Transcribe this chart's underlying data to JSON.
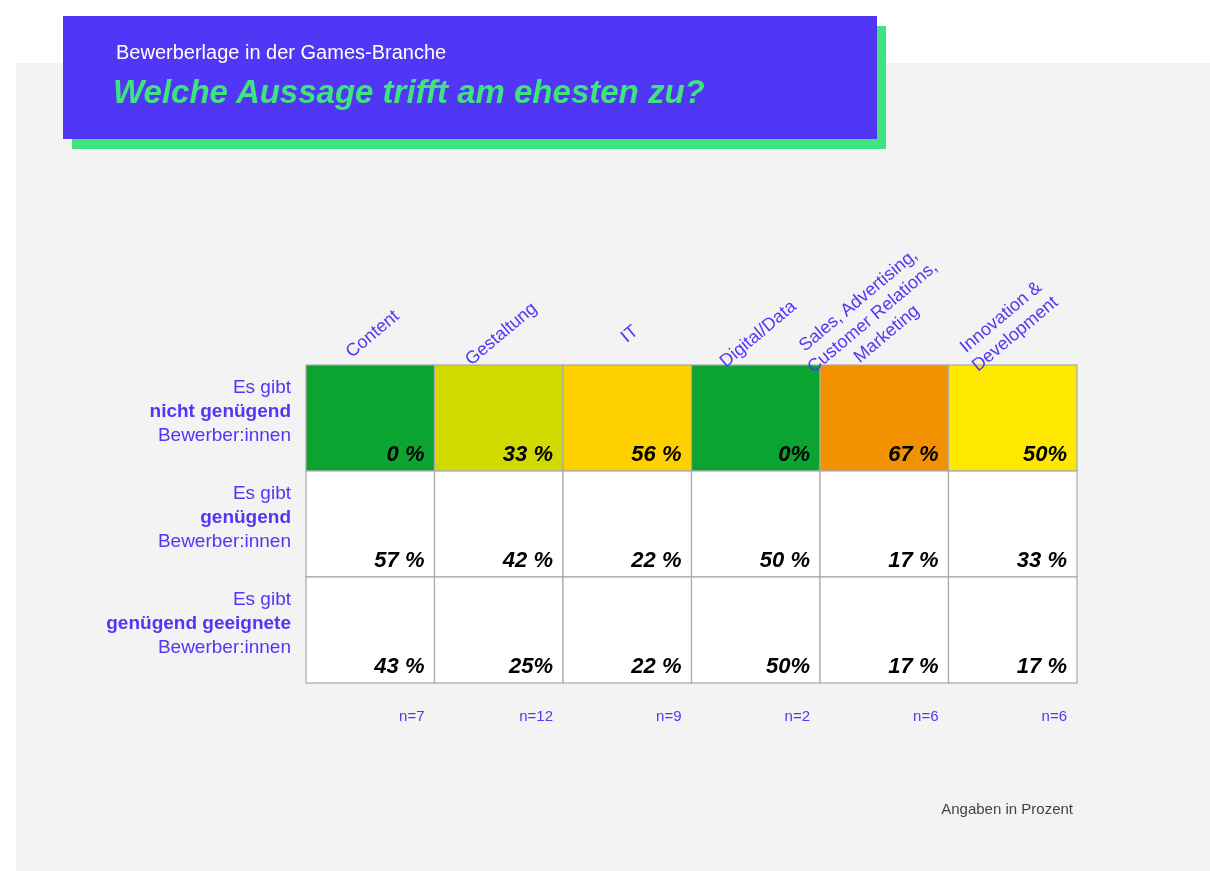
{
  "chart_data": {
    "type": "heatmap",
    "title": "Welche Aussage trifft am ehesten zu?",
    "subtitle": "Bewerberlage in der Games-Branche",
    "categories": [
      "Content",
      "Gestaltung",
      "IT",
      "Digital/Data",
      "Sales, Advertising, Customer Relations, Marketing",
      "Innovation & Development"
    ],
    "y_categories": [
      "Es gibt nicht genügend Bewerber:innen",
      "Es gibt genügend Bewerber:innen",
      "Es gibt genügend geeignete Bewerber:innen"
    ],
    "cells": [
      [
        0,
        33,
        56,
        0,
        67,
        50
      ],
      [
        57,
        42,
        22,
        50,
        17,
        33
      ],
      [
        43,
        25,
        22,
        50,
        17,
        17
      ]
    ],
    "cell_labels": [
      [
        "0 %",
        "33 %",
        "56 %",
        "0%",
        "67 %",
        "50%"
      ],
      [
        "57 %",
        "42 %",
        "22 %",
        "50 %",
        "17 %",
        "33 %"
      ],
      [
        "43 %",
        "25%",
        "22 %",
        "50%",
        "17 %",
        "17 %"
      ]
    ],
    "colors": [
      [
        "#0ca431",
        "#d0da00",
        "#ffd000",
        "#0ca431",
        "#f39200",
        "#ffe800"
      ],
      [
        "#ffffff",
        "#ffffff",
        "#ffffff",
        "#ffffff",
        "#ffffff",
        "#ffffff"
      ],
      [
        "#ffffff",
        "#ffffff",
        "#ffffff",
        "#ffffff",
        "#ffffff",
        "#ffffff"
      ]
    ],
    "annotations": [
      "n=7",
      "n=12",
      "n=9",
      "n=2",
      "n=6",
      "n=6",
      "Angaben in Prozent"
    ]
  }
}
